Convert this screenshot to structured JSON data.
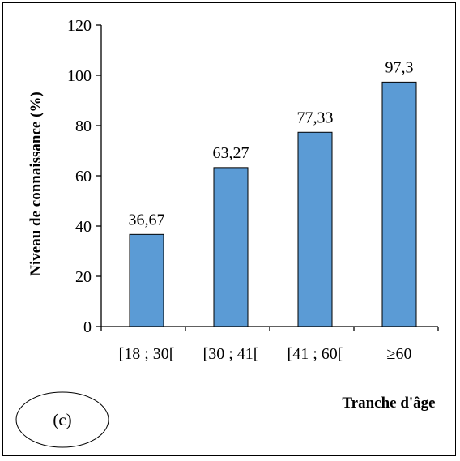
{
  "chart_data": {
    "type": "bar",
    "categories": [
      "[18 ; 30[",
      "[30 ; 41[",
      "[41 ; 60[",
      "≥60"
    ],
    "values": [
      36.67,
      63.27,
      77.33,
      97.3
    ],
    "data_labels": [
      "36,67",
      "63,27",
      "77,33",
      "97,3"
    ],
    "ylabel": "Niveau de connaissance (%)",
    "xlabel": "Tranche d'âge",
    "ylim": [
      0,
      120
    ],
    "yticks": [
      "0",
      "20",
      "40",
      "60",
      "80",
      "100",
      "120"
    ],
    "grid": false,
    "bar_color": "#5b9bd5",
    "panel_label": "(c)"
  }
}
